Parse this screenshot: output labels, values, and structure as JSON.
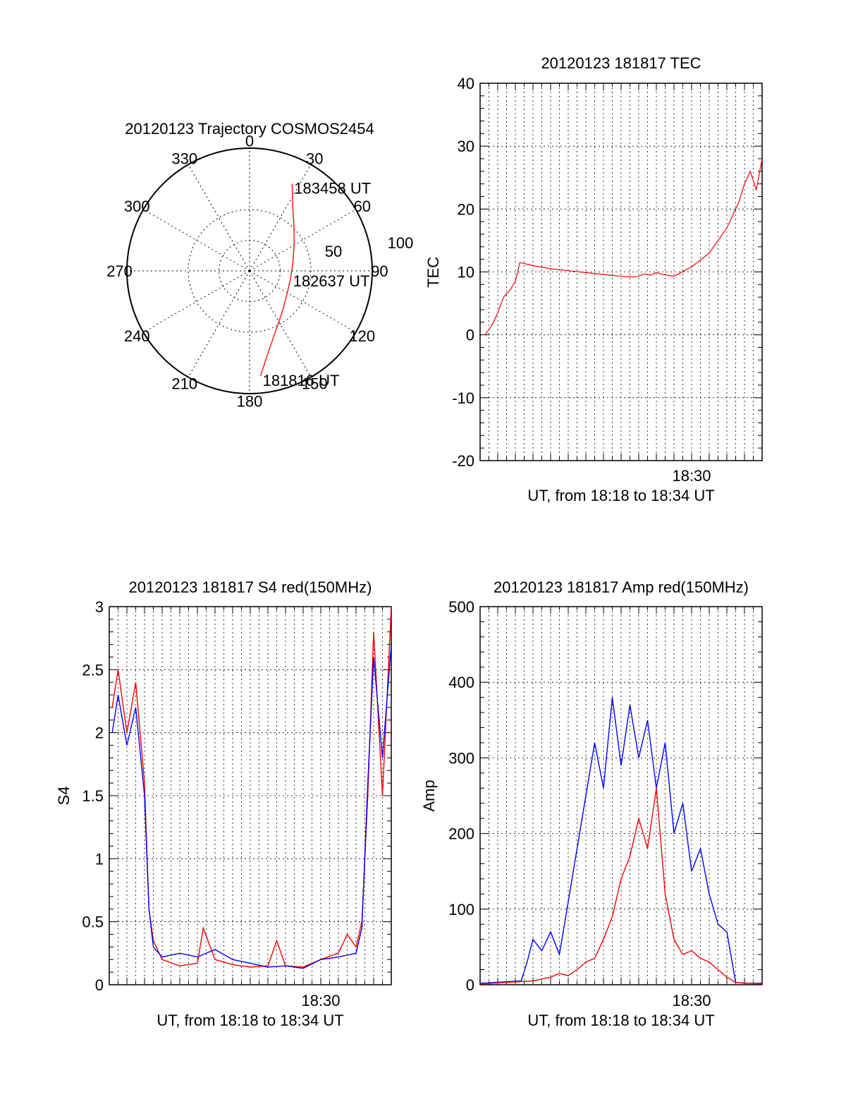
{
  "colors": {
    "axis": "#000000",
    "grid": "#000000",
    "red_series": "#ff0000",
    "blue_series": "#0000ff"
  },
  "chart_data": [
    {
      "id": "trajectory",
      "type": "polar",
      "title": "20120123 Trajectory COSMOS2454",
      "angle_labels": [
        "0",
        "30",
        "60",
        "90",
        "120",
        "150",
        "180",
        "210",
        "240",
        "270",
        "300",
        "330"
      ],
      "radial_ticks": [
        "50",
        "100"
      ],
      "rlim": [
        0,
        100
      ],
      "grid": true,
      "series": [
        {
          "color": "#ff0000",
          "points": [
            {
              "az": 174,
              "r": 86
            },
            {
              "az": 168,
              "r": 70
            },
            {
              "az": 158,
              "r": 55
            },
            {
              "az": 140,
              "r": 42
            },
            {
              "az": 117,
              "r": 35
            },
            {
              "az": 98,
              "r": 34
            },
            {
              "az": 79,
              "r": 36
            },
            {
              "az": 60,
              "r": 42
            },
            {
              "az": 44,
              "r": 52
            },
            {
              "az": 34,
              "r": 63
            },
            {
              "az": 26,
              "r": 79
            }
          ]
        }
      ],
      "annotations": [
        {
          "text": "183458 UT",
          "az": 26,
          "r": 79
        },
        {
          "text": "182637 UT",
          "az": 98,
          "r": 34
        },
        {
          "text": "181816 UT",
          "az": 174,
          "r": 86
        }
      ]
    },
    {
      "id": "tec",
      "type": "line",
      "title": "20120123 181817 TEC",
      "xlabel": "UT, from 18:18 to 18:34 UT",
      "ylabel": "TEC",
      "x_tick_label": "18:30",
      "xlim": [
        "18:18",
        "18:34"
      ],
      "ylim": [
        -20,
        40
      ],
      "yticks": [
        "-20",
        "-10",
        "0",
        "10",
        "20",
        "30",
        "40"
      ],
      "grid": true,
      "series": [
        {
          "color": "#ff0000",
          "x": [
            "18:18:17",
            "18:18:40",
            "18:19:00",
            "18:19:20",
            "18:19:40",
            "18:20:00",
            "18:20:15",
            "18:21:00",
            "18:22:00",
            "18:23:00",
            "18:24:00",
            "18:25:00",
            "18:26:00",
            "18:26:40",
            "18:27:00",
            "18:27:20",
            "18:27:40",
            "18:28:00",
            "18:28:20",
            "18:29:00",
            "18:30:00",
            "18:31:00",
            "18:32:00",
            "18:32:40",
            "18:33:00",
            "18:33:20",
            "18:33:40",
            "18:34:00"
          ],
          "y": [
            0,
            1.5,
            3.5,
            6,
            7,
            8.5,
            11.5,
            11,
            10.5,
            10.2,
            9.9,
            9.6,
            9.3,
            9.2,
            9.3,
            9.7,
            9.5,
            9.9,
            9.6,
            9.3,
            10.8,
            13,
            17,
            21,
            24,
            26,
            23,
            28
          ]
        }
      ]
    },
    {
      "id": "s4",
      "type": "line",
      "title": "20120123 181817 S4 red(150MHz)",
      "xlabel": "UT, from 18:18 to 18:34 UT",
      "ylabel": "S4",
      "x_tick_label": "18:30",
      "xlim": [
        "18:18",
        "18:34"
      ],
      "ylim": [
        0,
        3
      ],
      "yticks": [
        "0",
        "0.5",
        "1",
        "1.5",
        "2",
        "2.5",
        "3"
      ],
      "grid": true,
      "series": [
        {
          "color": "#ff0000",
          "x": [
            "18:18:10",
            "18:18:30",
            "18:19:00",
            "18:19:30",
            "18:20:00",
            "18:20:15",
            "18:20:30",
            "18:21:00",
            "18:22:00",
            "18:23:00",
            "18:23:20",
            "18:24:00",
            "18:25:00",
            "18:26:00",
            "18:27:00",
            "18:27:30",
            "18:28:00",
            "18:29:00",
            "18:30:00",
            "18:31:00",
            "18:31:30",
            "18:32:00",
            "18:32:20",
            "18:32:40",
            "18:33:00",
            "18:33:30",
            "18:34:00"
          ],
          "y": [
            2.2,
            2.5,
            2.0,
            2.4,
            1.6,
            0.6,
            0.35,
            0.2,
            0.15,
            0.17,
            0.45,
            0.2,
            0.16,
            0.14,
            0.15,
            0.35,
            0.15,
            0.14,
            0.2,
            0.25,
            0.4,
            0.3,
            0.5,
            1.5,
            2.8,
            1.5,
            3.0
          ]
        },
        {
          "color": "#0000ff",
          "x": [
            "18:18:10",
            "18:18:30",
            "18:19:00",
            "18:19:30",
            "18:20:00",
            "18:20:15",
            "18:20:30",
            "18:21:00",
            "18:22:00",
            "18:23:00",
            "18:24:00",
            "18:25:00",
            "18:26:00",
            "18:27:00",
            "18:28:00",
            "18:29:00",
            "18:30:00",
            "18:31:00",
            "18:32:00",
            "18:32:20",
            "18:32:40",
            "18:33:00",
            "18:33:30",
            "18:34:00"
          ],
          "y": [
            2.0,
            2.3,
            1.9,
            2.2,
            1.5,
            0.6,
            0.3,
            0.22,
            0.25,
            0.22,
            0.28,
            0.2,
            0.17,
            0.14,
            0.15,
            0.13,
            0.2,
            0.22,
            0.25,
            0.45,
            1.6,
            2.6,
            1.8,
            2.7
          ]
        }
      ]
    },
    {
      "id": "amp",
      "type": "line",
      "title": "20120123 181817 Amp red(150MHz)",
      "xlabel": "UT, from 18:18 to 18:34 UT",
      "ylabel": "Amp",
      "x_tick_label": "18:30",
      "xlim": [
        "18:18",
        "18:34"
      ],
      "ylim": [
        0,
        500
      ],
      "yticks": [
        "0",
        "100",
        "200",
        "300",
        "400",
        "500"
      ],
      "grid": true,
      "series": [
        {
          "color": "#0000ff",
          "x": [
            "18:18:00",
            "18:20:20",
            "18:20:40",
            "18:21:00",
            "18:21:30",
            "18:22:00",
            "18:22:30",
            "18:23:00",
            "18:23:30",
            "18:24:00",
            "18:24:30",
            "18:25:00",
            "18:25:30",
            "18:26:00",
            "18:26:30",
            "18:27:00",
            "18:27:30",
            "18:28:00",
            "18:28:30",
            "18:29:00",
            "18:29:30",
            "18:30:00",
            "18:30:30",
            "18:31:00",
            "18:31:30",
            "18:32:00",
            "18:32:30",
            "18:33:00",
            "18:34:00"
          ],
          "y": [
            2,
            5,
            30,
            60,
            45,
            70,
            40,
            110,
            180,
            250,
            320,
            260,
            380,
            290,
            370,
            300,
            350,
            260,
            320,
            200,
            240,
            150,
            180,
            120,
            80,
            70,
            3,
            2,
            2
          ]
        },
        {
          "color": "#ff0000",
          "x": [
            "18:18:00",
            "18:21:00",
            "18:22:00",
            "18:22:30",
            "18:23:00",
            "18:23:30",
            "18:24:00",
            "18:24:30",
            "18:25:00",
            "18:25:30",
            "18:26:00",
            "18:26:30",
            "18:27:00",
            "18:27:30",
            "18:28:00",
            "18:28:30",
            "18:29:00",
            "18:29:30",
            "18:30:00",
            "18:30:30",
            "18:31:00",
            "18:31:30",
            "18:32:00",
            "18:32:30",
            "18:34:00"
          ],
          "y": [
            1,
            5,
            10,
            15,
            12,
            20,
            30,
            35,
            60,
            90,
            140,
            170,
            220,
            180,
            260,
            120,
            60,
            40,
            45,
            35,
            30,
            20,
            10,
            3,
            1
          ]
        }
      ]
    }
  ]
}
